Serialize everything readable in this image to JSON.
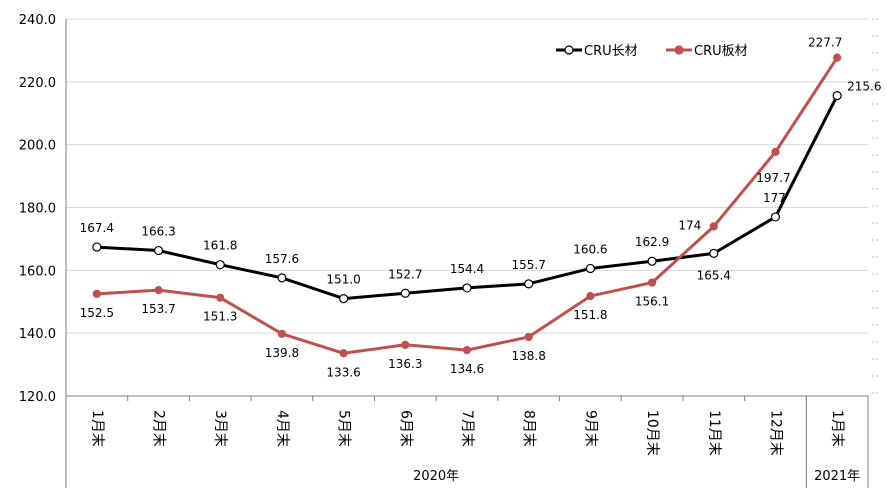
{
  "chart_data": {
    "type": "line",
    "categories": [
      "1月末",
      "2月末",
      "3月末",
      "4月末",
      "5月末",
      "6月末",
      "7月末",
      "8月末",
      "9月末",
      "10月末",
      "11月末",
      "12月末",
      "1月末"
    ],
    "groups": [
      {
        "label": "2020年",
        "from": 0,
        "to": 11
      },
      {
        "label": "2021年",
        "from": 12,
        "to": 12
      }
    ],
    "series": [
      {
        "name": "CRU长材",
        "color": "#000000",
        "marker": "open-circle",
        "values": [
          167.4,
          166.3,
          161.8,
          157.6,
          151.0,
          152.7,
          154.4,
          155.7,
          160.6,
          162.9,
          165.4,
          177,
          215.6
        ],
        "labels": [
          "167.4",
          "166.3",
          "161.8",
          "157.6",
          "151.0",
          "152.7",
          "154.4",
          "155.7",
          "160.6",
          "162.9",
          "165.4",
          "177",
          "215.6"
        ]
      },
      {
        "name": "CRU板材",
        "color": "#c0504d",
        "marker": "filled-circle",
        "values": [
          152.5,
          153.7,
          151.3,
          139.8,
          133.6,
          136.3,
          134.6,
          138.8,
          151.8,
          156.1,
          174,
          197.7,
          227.7
        ],
        "labels": [
          "152.5",
          "153.7",
          "151.3",
          "139.8",
          "133.6",
          "136.3",
          "134.6",
          "138.8",
          "151.8",
          "156.1",
          "174",
          "197.7",
          "227.7"
        ]
      }
    ],
    "ylim": [
      120,
      240
    ],
    "yticks": [
      "120.0",
      "140.0",
      "160.0",
      "180.0",
      "200.0",
      "220.0",
      "240.0"
    ],
    "grid": true,
    "legend": "top-right"
  }
}
